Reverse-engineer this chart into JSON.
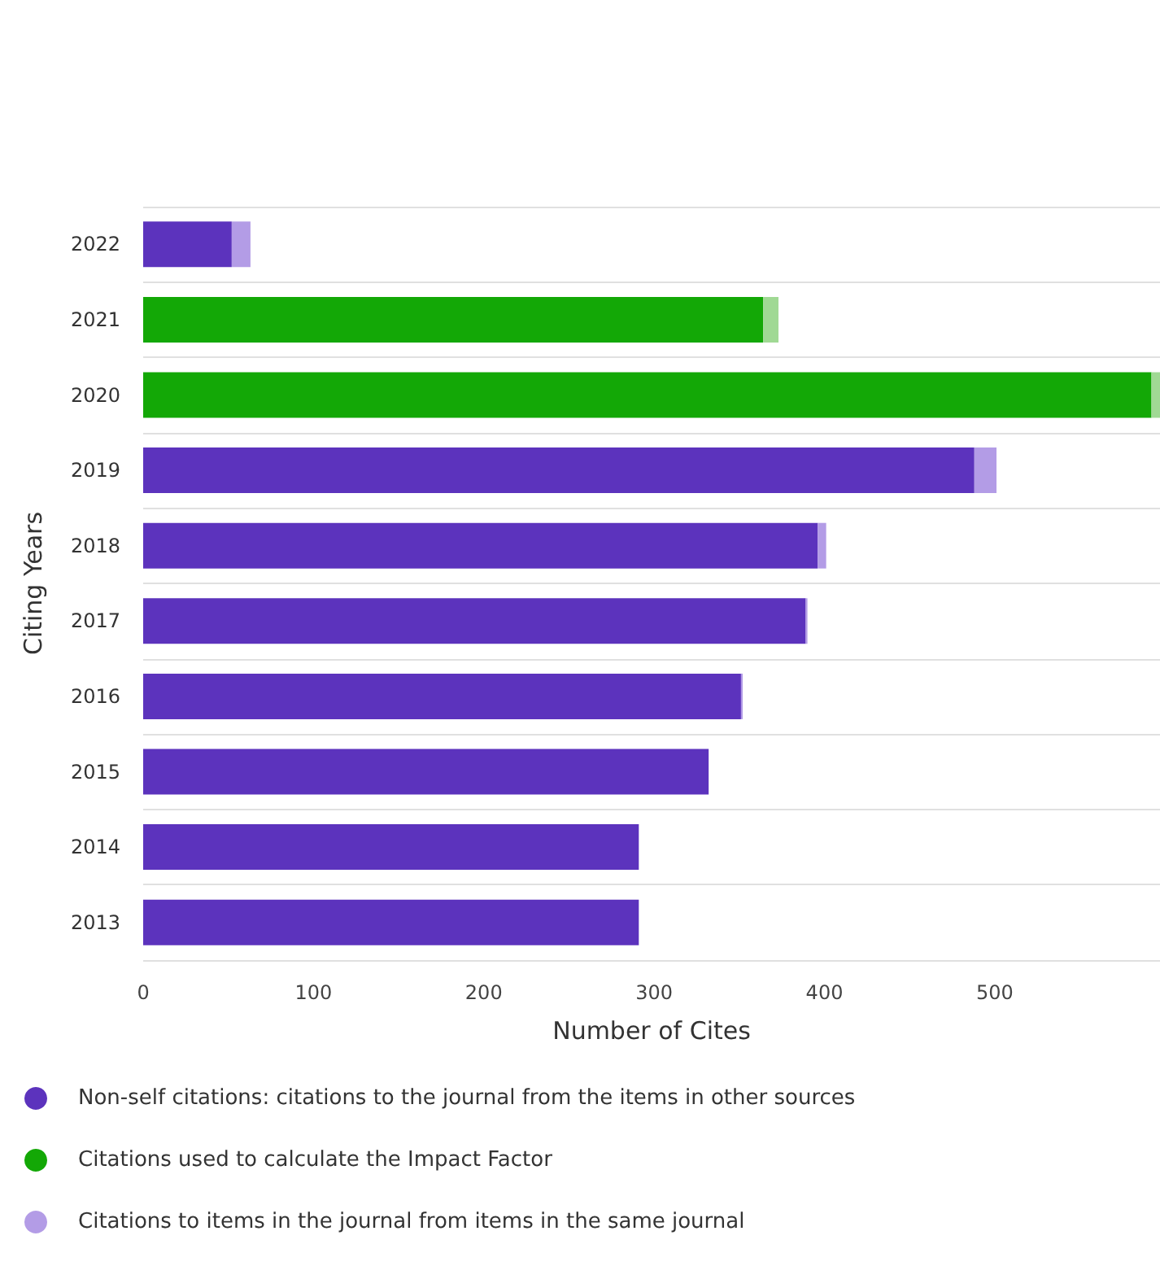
{
  "chart_data": {
    "type": "bar",
    "orientation": "horizontal",
    "stacked": true,
    "categories": [
      "2022",
      "2021",
      "2020",
      "2019",
      "2018",
      "2017",
      "2016",
      "2015",
      "2014",
      "2013"
    ],
    "series": [
      {
        "name": "Non-self citations: citations to the journal from the items in other sources",
        "color": "#5c33bd",
        "values": [
          52,
          null,
          null,
          488,
          396,
          389,
          351,
          332,
          291,
          291
        ]
      },
      {
        "name": "Citations used to calculate the Impact Factor",
        "color": "#13a806",
        "values": [
          null,
          364,
          592,
          null,
          null,
          null,
          null,
          null,
          null,
          null
        ]
      },
      {
        "name": "Citations to items in the journal from items in the same journal",
        "color": "#b39ce6",
        "colors": [
          "#b39ce6",
          "#a0d994",
          "#a0d994",
          "#b39ce6",
          "#b39ce6",
          "#b39ce6",
          "#b39ce6",
          "#b39ce6",
          "#b39ce6",
          "#b39ce6"
        ],
        "values": [
          11,
          9,
          5,
          13,
          5,
          1,
          1,
          null,
          null,
          null
        ]
      }
    ],
    "xlim": [
      0,
      597
    ],
    "xticks": [
      0,
      100,
      200,
      300,
      400,
      500
    ],
    "xlabel": "Number of Cites",
    "ylabel": "Citing Years",
    "grid": "y",
    "legend": "bottom"
  }
}
